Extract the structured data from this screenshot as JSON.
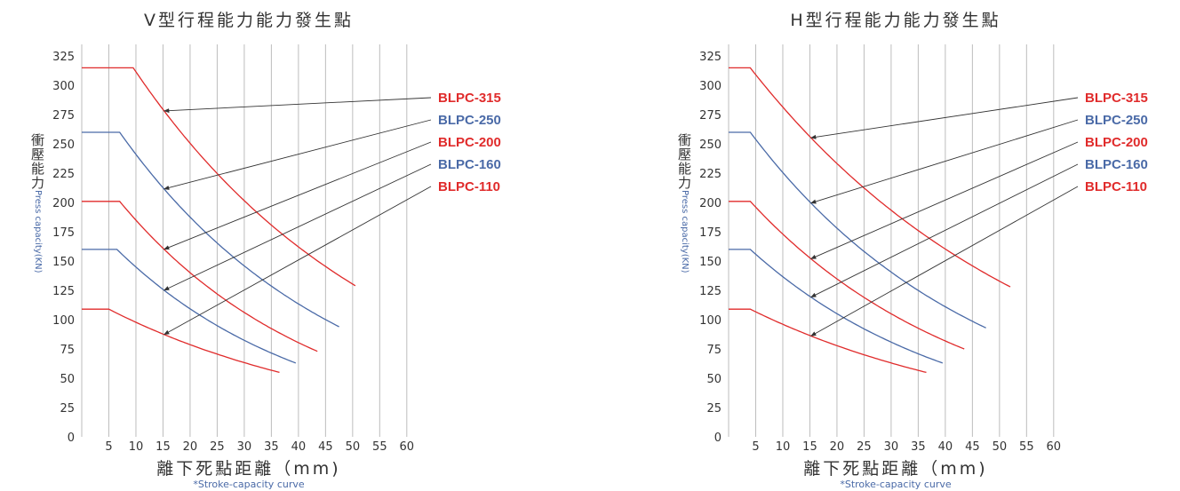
{
  "colors": {
    "red": "#e02b2b",
    "blue": "#4a6aa7",
    "grid": "#bdbdbd",
    "arrow": "#333333"
  },
  "chart_data": [
    {
      "type": "line",
      "title": "V型行程能力能力發生點",
      "ylabel_zh": "衝壓能力",
      "ylabel_en": "Press capacity(KN)",
      "xlabel": "離下死點距離（mm)",
      "xsubtitle": "*Stroke-capacity curve",
      "xticks": [
        "5",
        "10",
        "15",
        "20",
        "25",
        "30",
        "35",
        "40",
        "45",
        "50",
        "55",
        "60"
      ],
      "yticks": [
        "0",
        "25",
        "50",
        "75",
        "100",
        "125",
        "150",
        "175",
        "200",
        "225",
        "250",
        "275",
        "300",
        "325"
      ],
      "xlim": [
        0,
        62
      ],
      "ylim": [
        0,
        335
      ],
      "grid": "vertical",
      "series": [
        {
          "name": "BLPC-315",
          "color": "red",
          "flat": 315,
          "knee": 9.5,
          "end_x": 50.5,
          "end_y": 129,
          "arrow_at_x": 15.2
        },
        {
          "name": "BLPC-250",
          "color": "blue",
          "flat": 260,
          "knee": 7,
          "end_x": 47.5,
          "end_y": 94,
          "arrow_at_x": 15.2
        },
        {
          "name": "BLPC-200",
          "color": "red",
          "flat": 201,
          "knee": 7,
          "end_x": 43.5,
          "end_y": 73,
          "arrow_at_x": 15.2
        },
        {
          "name": "BLPC-160",
          "color": "blue",
          "flat": 160,
          "knee": 6.5,
          "end_x": 39.5,
          "end_y": 63,
          "arrow_at_x": 15.2
        },
        {
          "name": "BLPC-110",
          "color": "red",
          "flat": 109,
          "knee": 5,
          "end_x": 36.5,
          "end_y": 55,
          "arrow_at_x": 15.2
        }
      ]
    },
    {
      "type": "line",
      "title": "H型行程能力能力發生點",
      "ylabel_zh": "衝壓能力",
      "ylabel_en": "Press capacity(KN)",
      "xlabel": "離下死點距離（mm)",
      "xsubtitle": "*Stroke-capacity curve",
      "xticks": [
        "5",
        "10",
        "15",
        "20",
        "25",
        "30",
        "35",
        "40",
        "45",
        "50",
        "55",
        "60"
      ],
      "yticks": [
        "0",
        "25",
        "50",
        "75",
        "100",
        "125",
        "150",
        "175",
        "200",
        "225",
        "250",
        "275",
        "300",
        "325"
      ],
      "xlim": [
        0,
        62
      ],
      "ylim": [
        0,
        335
      ],
      "grid": "vertical",
      "series": [
        {
          "name": "BLPC-315",
          "color": "red",
          "flat": 315,
          "knee": 4,
          "end_x": 52,
          "end_y": 128,
          "arrow_at_x": 15.2
        },
        {
          "name": "BLPC-250",
          "color": "blue",
          "flat": 260,
          "knee": 4,
          "end_x": 47.5,
          "end_y": 93,
          "arrow_at_x": 15.2
        },
        {
          "name": "BLPC-200",
          "color": "red",
          "flat": 201,
          "knee": 4,
          "end_x": 43.5,
          "end_y": 75,
          "arrow_at_x": 15.2
        },
        {
          "name": "BLPC-160",
          "color": "blue",
          "flat": 160,
          "knee": 4,
          "end_x": 39.5,
          "end_y": 63,
          "arrow_at_x": 15.2
        },
        {
          "name": "BLPC-110",
          "color": "red",
          "flat": 109,
          "knee": 4,
          "end_x": 36.5,
          "end_y": 55,
          "arrow_at_x": 15.2
        }
      ]
    }
  ]
}
